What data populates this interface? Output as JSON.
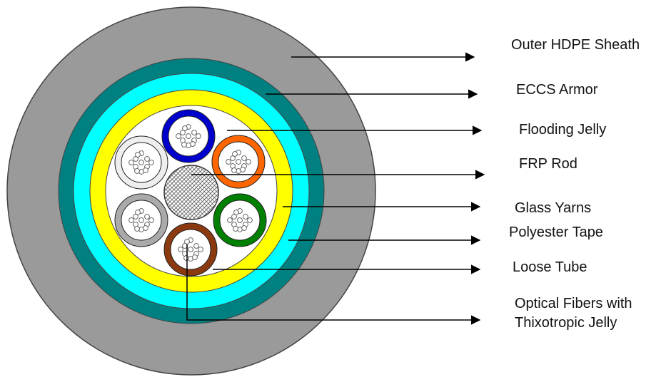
{
  "labels": {
    "outer_sheath": "Outer HDPE Sheath",
    "armor": "ECCS Armor",
    "flooding_jelly": "Flooding Jelly",
    "frp_rod": "FRP Rod",
    "glass_yarns": "Glass Yarns",
    "polyester_tape": "Polyester Tape",
    "loose_tube": "Loose Tube",
    "optical_fibers_line1": "Optical Fibers with",
    "optical_fibers_line2": "Thixotropic Jelly"
  },
  "colors": {
    "outer_sheath": "#9a9a9a",
    "armor": "#008080",
    "cyan_layer": "#00ffff",
    "yellow_layer": "#ffff00",
    "core_fill": "#ffffff",
    "tube_blue": "#0000cc",
    "tube_orange": "#ff6600",
    "tube_green": "#008000",
    "tube_brown": "#8b3a0f",
    "tube_white": "#dddddd",
    "tube_grey": "#aaaaaa",
    "rod": "#555555",
    "line": "#000000"
  }
}
